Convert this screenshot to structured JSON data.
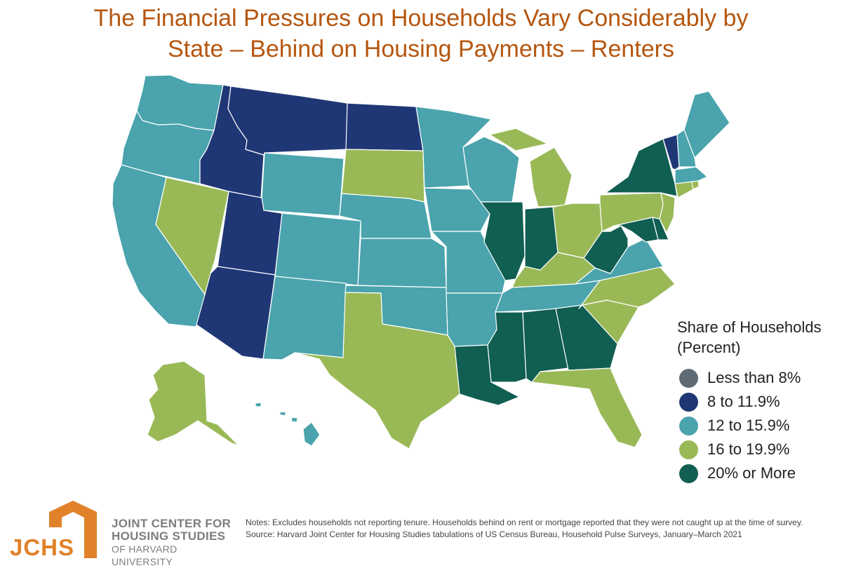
{
  "title": {
    "line1": "The Financial Pressures on Households Vary Considerably by",
    "line2": "State – Behind on Housing Payments – Renters"
  },
  "categories": {
    "c1": {
      "label": "Less than 8%",
      "color": "#5e6b75"
    },
    "c2": {
      "label": "8 to 11.9%",
      "color": "#1f3775"
    },
    "c3": {
      "label": "12 to 15.9%",
      "color": "#4aa3ad"
    },
    "c4": {
      "label": "16 to 19.9%",
      "color": "#99b957"
    },
    "c5": {
      "label": "20% or More",
      "color": "#115e52"
    }
  },
  "legend": {
    "title_line1": "Share of Households",
    "title_line2": "(Percent)",
    "items": [
      {
        "label": "Less than 8%",
        "color": "#5e6b75"
      },
      {
        "label": "8 to 11.9%",
        "color": "#1f3775"
      },
      {
        "label": "12 to 15.9%",
        "color": "#4aa3ad"
      },
      {
        "label": "16 to 19.9%",
        "color": "#99b957"
      },
      {
        "label": "20% or More",
        "color": "#115e52"
      }
    ]
  },
  "states": {
    "WA": "c3",
    "OR": "c3",
    "CA": "c3",
    "NV": "c4",
    "ID": "c2",
    "MT": "c2",
    "WY": "c3",
    "UT": "c2",
    "AZ": "c2",
    "CO": "c3",
    "NM": "c3",
    "ND": "c2",
    "SD": "c4",
    "NE": "c3",
    "KS": "c3",
    "OK": "c3",
    "TX": "c4",
    "MN": "c3",
    "IA": "c3",
    "MO": "c3",
    "AR": "c3",
    "LA": "c5",
    "WI": "c3",
    "IL": "c5",
    "MI": "c4",
    "IN": "c5",
    "OH": "c4",
    "KY": "c4",
    "TN": "c3",
    "MS": "c5",
    "AL": "c5",
    "GA": "c5",
    "FL": "c4",
    "SC": "c4",
    "NC": "c4",
    "VA": "c3",
    "WV": "c5",
    "MD": "c5",
    "DE": "c5",
    "NJ": "c4",
    "PA": "c4",
    "NY": "c5",
    "CT": "c4",
    "RI": "c4",
    "MA": "c3",
    "VT": "c2",
    "NH": "c3",
    "ME": "c3",
    "AK": "c4",
    "HI": "c3"
  },
  "logo": {
    "letters": "JCHS",
    "line1": "JOINT CENTER FOR",
    "line2": "HOUSING STUDIES",
    "line3": "OF HARVARD UNIVERSITY",
    "color": "#e1822a"
  },
  "notes": {
    "line1": "Notes: Excludes households not reporting tenure. Households behind on rent or mortgage reported that they were not caught up at the time of survey.",
    "line2": "Source: Harvard Joint Center for Housing Studies tabulations of US Census Bureau, Household Pulse Surveys, January–March 2021"
  }
}
